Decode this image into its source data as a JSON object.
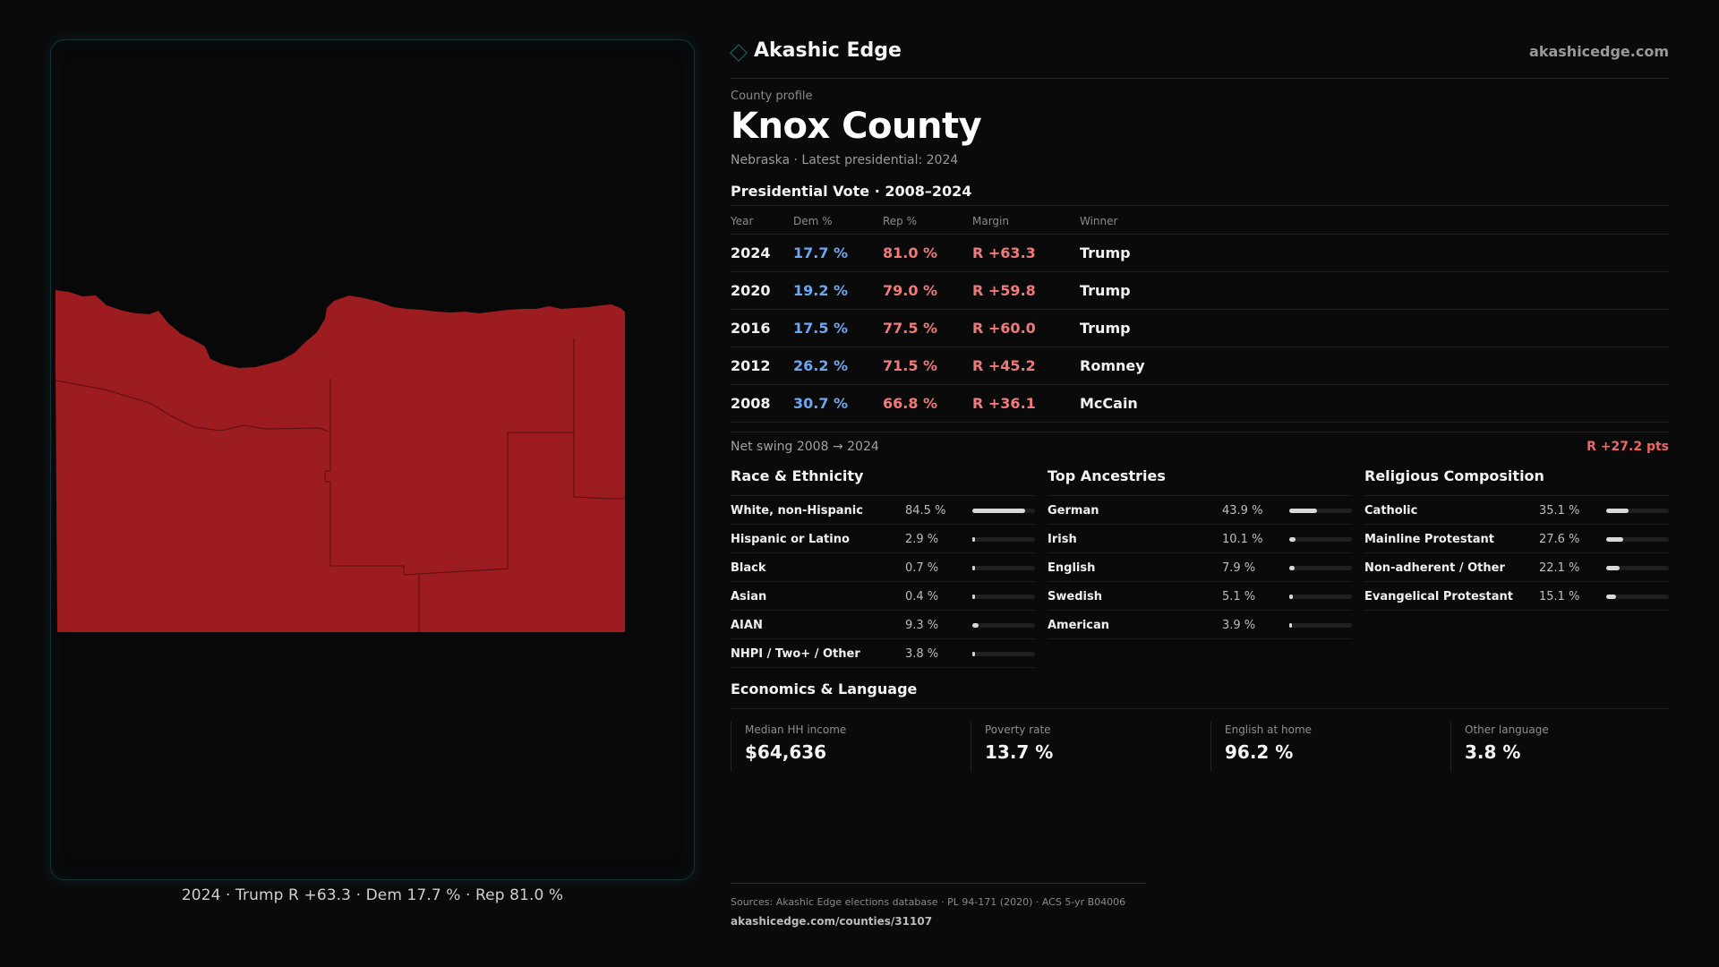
{
  "brand": {
    "name": "Akashic Edge",
    "url": "akashicedge.com",
    "logo_icon": "diamond-icon"
  },
  "profile": {
    "eyebrow": "County profile",
    "title": "Knox County",
    "subtitle": "Nebraska · Latest presidential: 2024"
  },
  "votes": {
    "heading": "Presidential Vote · 2008–2024",
    "columns": [
      "Year",
      "Dem %",
      "Rep %",
      "Margin",
      "Winner"
    ],
    "rows": [
      {
        "year": "2024",
        "dem": "17.7 %",
        "rep": "81.0 %",
        "margin": "R +63.3",
        "winner": "Trump"
      },
      {
        "year": "2020",
        "dem": "19.2 %",
        "rep": "79.0 %",
        "margin": "R +59.8",
        "winner": "Trump"
      },
      {
        "year": "2016",
        "dem": "17.5 %",
        "rep": "77.5 %",
        "margin": "R +60.0",
        "winner": "Trump"
      },
      {
        "year": "2012",
        "dem": "26.2 %",
        "rep": "71.5 %",
        "margin": "R +45.2",
        "winner": "Romney"
      },
      {
        "year": "2008",
        "dem": "30.7 %",
        "rep": "66.8 %",
        "margin": "R +36.1",
        "winner": "McCain"
      }
    ],
    "swing_label": "Net swing 2008 → 2024",
    "swing_value": "R +27.2 pts"
  },
  "race": {
    "heading": "Race & Ethnicity",
    "items": [
      {
        "label": "White, non-Hispanic",
        "value": "84.5 %",
        "pct": 84.5
      },
      {
        "label": "Hispanic or Latino",
        "value": "2.9 %",
        "pct": 2.9
      },
      {
        "label": "Black",
        "value": "0.7 %",
        "pct": 0.7
      },
      {
        "label": "Asian",
        "value": "0.4 %",
        "pct": 0.4
      },
      {
        "label": "AIAN",
        "value": "9.3 %",
        "pct": 9.3
      },
      {
        "label": "NHPI / Two+ / Other",
        "value": "3.8 %",
        "pct": 3.8
      }
    ]
  },
  "ancestry": {
    "heading": "Top Ancestries",
    "items": [
      {
        "label": "German",
        "value": "43.9 %",
        "pct": 43.9
      },
      {
        "label": "Irish",
        "value": "10.1 %",
        "pct": 10.1
      },
      {
        "label": "English",
        "value": "7.9 %",
        "pct": 7.9
      },
      {
        "label": "Swedish",
        "value": "5.1 %",
        "pct": 5.1
      },
      {
        "label": "American",
        "value": "3.9 %",
        "pct": 3.9
      }
    ]
  },
  "religion": {
    "heading": "Religious Composition",
    "items": [
      {
        "label": "Catholic",
        "value": "35.1 %",
        "pct": 35.1
      },
      {
        "label": "Mainline Protestant",
        "value": "27.6 %",
        "pct": 27.6
      },
      {
        "label": "Non-adherent / Other",
        "value": "22.1 %",
        "pct": 22.1
      },
      {
        "label": "Evangelical Protestant",
        "value": "15.1 %",
        "pct": 15.1
      }
    ]
  },
  "economics": {
    "heading": "Economics & Language",
    "stats": [
      {
        "label": "Median HH income",
        "value": "$64,636"
      },
      {
        "label": "Poverty rate",
        "value": "13.7 %"
      },
      {
        "label": "English at home",
        "value": "96.2 %"
      },
      {
        "label": "Other language",
        "value": "3.8 %"
      }
    ]
  },
  "map": {
    "caption": "2024 · Trump R +63.3 · Dem 17.7 % · Rep 81.0 %",
    "fill_color": "#9c1c1f"
  },
  "sources": {
    "line1": "Sources: Akashic Edge elections database · PL 94-171 (2020) · ACS 5-yr B04006",
    "line2": "akashicedge.com/counties/31107"
  }
}
